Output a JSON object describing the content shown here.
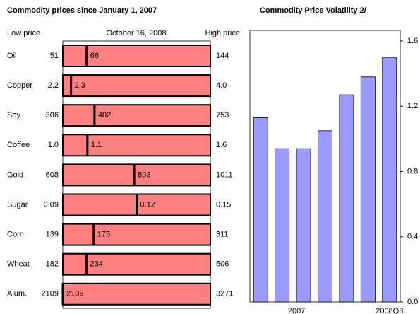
{
  "chart_data": [
    {
      "type": "range",
      "title": "Commodity prices since January 1, 2007",
      "categories": [
        "Oil",
        "Copper",
        "Soy",
        "Coffee",
        "Gold",
        "Sugar",
        "Corn",
        "Wheat",
        "Alum."
      ],
      "series": [
        {
          "name": "Low price",
          "values": [
            51,
            2.2,
            306,
            1.0,
            608,
            0.09,
            139,
            182,
            2109
          ],
          "value_labels": [
            "51",
            "2.2",
            "306",
            "1.0",
            "608",
            "0.09",
            "139",
            "182",
            "2109"
          ]
        },
        {
          "name": "October 16, 2008",
          "values": [
            66,
            2.3,
            402,
            1.1,
            803,
            0.12,
            175,
            234,
            2109
          ],
          "value_labels": [
            "66",
            "2.3",
            "402",
            "1.1",
            "803",
            "0.12",
            "175",
            "234",
            "2109"
          ]
        },
        {
          "name": "High price",
          "values": [
            144,
            4.0,
            753,
            1.6,
            1011,
            0.15,
            311,
            506,
            3271
          ],
          "value_labels": [
            "144",
            "4.0",
            "753",
            "1.6",
            "1011",
            "0.15",
            "311",
            "506",
            "3271"
          ]
        }
      ],
      "color": "#ff8080"
    },
    {
      "type": "bar",
      "title": "Commodity Price Volatility 2/",
      "categories": [
        null,
        null,
        "2007",
        null,
        null,
        null,
        "2008Q3"
      ],
      "values": [
        1.13,
        0.94,
        0.94,
        1.05,
        1.27,
        1.38,
        1.5
      ],
      "color": "#9999ff",
      "ylim": [
        0,
        1.6
      ],
      "yticks": [
        {
          "value": 0,
          "label": "0.0"
        },
        0.4,
        0.8,
        1.2,
        1.6
      ]
    }
  ]
}
